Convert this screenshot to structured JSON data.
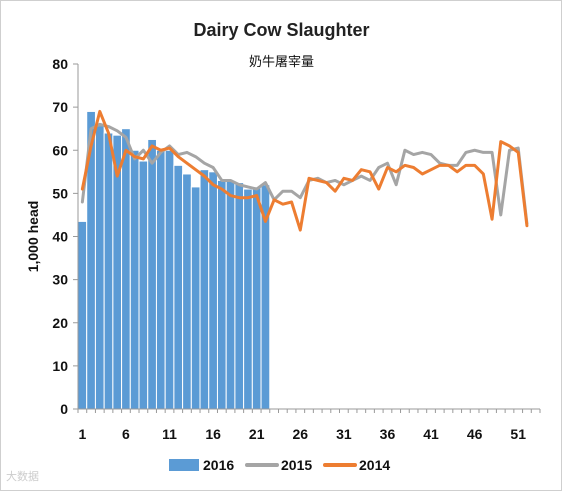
{
  "watermark": "大数据",
  "chart_data": {
    "type": "bar+line",
    "title": "Dairy Cow Slaughter",
    "subtitle": "奶牛屠宰量",
    "ylabel": "1,000 head",
    "xlabel": "",
    "ylim": [
      0,
      80
    ],
    "xlim": [
      1,
      53
    ],
    "yticks": [
      0,
      10,
      20,
      30,
      40,
      50,
      60,
      70,
      80
    ],
    "xticks": [
      1,
      6,
      11,
      16,
      21,
      26,
      31,
      36,
      41,
      46,
      51
    ],
    "legend_position": "bottom",
    "grid": false,
    "series": [
      {
        "name": "2016",
        "kind": "bar",
        "color": "#5b9bd5",
        "x": [
          1,
          2,
          3,
          4,
          5,
          6,
          7,
          8,
          9,
          10,
          11,
          12,
          13,
          14,
          15,
          16,
          17,
          18,
          19,
          20,
          21,
          22
        ],
        "values": [
          43.5,
          69,
          66,
          64,
          63.5,
          65,
          60,
          57.5,
          62.5,
          60,
          60,
          56.5,
          54.5,
          51.5,
          55.5,
          55,
          53,
          53,
          52.5,
          51,
          51.5,
          52
        ]
      },
      {
        "name": "2015",
        "kind": "line",
        "color": "#a5a5a5",
        "x": [
          1,
          2,
          3,
          4,
          5,
          6,
          7,
          8,
          9,
          10,
          11,
          12,
          13,
          14,
          15,
          16,
          17,
          18,
          19,
          20,
          21,
          22,
          23,
          24,
          25,
          26,
          27,
          28,
          29,
          30,
          31,
          32,
          33,
          34,
          35,
          36,
          37,
          38,
          39,
          40,
          41,
          42,
          43,
          44,
          45,
          46,
          47,
          48,
          49,
          50,
          51,
          52
        ],
        "values": [
          48,
          65,
          66,
          65.5,
          64.5,
          63,
          58,
          60,
          57,
          59.5,
          61,
          59,
          59.5,
          58.5,
          57,
          56,
          53,
          53,
          52,
          51.5,
          51,
          52.5,
          48.5,
          50.5,
          50.5,
          49,
          53,
          53.5,
          52.5,
          53,
          52,
          53,
          54,
          53,
          56,
          57,
          52,
          60,
          59,
          59.5,
          59,
          57,
          56.5,
          56.5,
          59.5,
          60,
          59.5,
          59.5,
          45,
          60,
          60.5,
          43
        ]
      },
      {
        "name": "2014",
        "kind": "line",
        "color": "#ed7d31",
        "x": [
          1,
          2,
          3,
          4,
          5,
          6,
          7,
          8,
          9,
          10,
          11,
          12,
          13,
          14,
          15,
          16,
          17,
          18,
          19,
          20,
          21,
          22,
          23,
          24,
          25,
          26,
          27,
          28,
          29,
          30,
          31,
          32,
          33,
          34,
          35,
          36,
          37,
          38,
          39,
          40,
          41,
          42,
          43,
          44,
          45,
          46,
          47,
          48,
          49,
          50,
          51,
          52
        ],
        "values": [
          51,
          61,
          69,
          64,
          54,
          60,
          58.5,
          58,
          61,
          60,
          60.5,
          58.5,
          57,
          55.5,
          54,
          52,
          51,
          49.5,
          49,
          49,
          49.5,
          43.5,
          48.5,
          47.5,
          48,
          41.5,
          53.5,
          53,
          52.5,
          50.5,
          53.5,
          53,
          55.5,
          55,
          51,
          56,
          55,
          56.5,
          56,
          54.5,
          55.5,
          56.5,
          56.5,
          55,
          56.5,
          56.5,
          54.5,
          44,
          62,
          61,
          59.5,
          42.5
        ]
      }
    ]
  }
}
